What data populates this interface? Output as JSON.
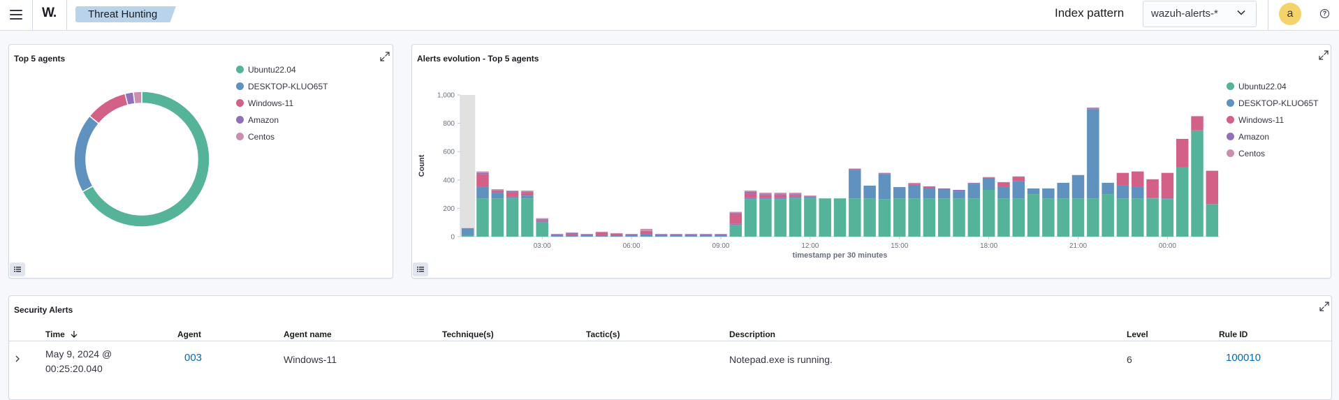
{
  "header": {
    "app_logo": "W.",
    "breadcrumb": "Threat Hunting",
    "index_pattern_label": "Index pattern",
    "index_pattern_value": "wazuh-alerts-*",
    "avatar_letter": "a",
    "help_icon": "?"
  },
  "colors": {
    "ubuntu": "#54b399",
    "desktop": "#6092c0",
    "windows": "#d36086",
    "amazon": "#9170b8",
    "centos": "#ca8eae"
  },
  "top_agents": {
    "title": "Top 5 agents",
    "legend": [
      "Ubuntu22.04",
      "DESKTOP-KLUO65T",
      "Windows-11",
      "Amazon",
      "Centos"
    ]
  },
  "alerts_evolution": {
    "title": "Alerts evolution - Top 5 agents",
    "legend": [
      "Ubuntu22.04",
      "DESKTOP-KLUO65T",
      "Windows-11",
      "Amazon",
      "Centos"
    ]
  },
  "chart_data": [
    {
      "type": "pie",
      "title": "Top 5 agents",
      "donut": true,
      "categories": [
        "Ubuntu22.04",
        "DESKTOP-KLUO65T",
        "Windows-11",
        "Amazon",
        "Centos"
      ],
      "values": [
        67,
        19,
        10,
        2,
        2
      ]
    },
    {
      "type": "bar",
      "stacked": true,
      "title": "Alerts evolution - Top 5 agents",
      "xlabel": "timestamp per 30 minutes",
      "ylabel": "Count",
      "ylim": [
        0,
        1000
      ],
      "yticks": [
        0,
        200,
        400,
        600,
        800,
        1000
      ],
      "ytick_labels": [
        "0",
        "200",
        "400",
        "600",
        "800",
        "1,000"
      ],
      "xtick_labels": [
        {
          "label": "03:00",
          "index": 5.5
        },
        {
          "label": "06:00",
          "index": 11.5
        },
        {
          "label": "09:00",
          "index": 17.5
        },
        {
          "label": "12:00",
          "index": 23.5
        },
        {
          "label": "15:00",
          "index": 29.5
        },
        {
          "label": "18:00",
          "index": 35.5
        },
        {
          "label": "21:00",
          "index": 41.5
        },
        {
          "label": "00:00",
          "index": 47.5
        }
      ],
      "series": [
        {
          "name": "Ubuntu22.04",
          "values": [
            10,
            270,
            270,
            270,
            270,
            100,
            0,
            0,
            0,
            0,
            0,
            0,
            0,
            0,
            0,
            0,
            0,
            0,
            80,
            265,
            265,
            265,
            270,
            270,
            270,
            270,
            270,
            270,
            265,
            270,
            270,
            270,
            270,
            270,
            270,
            330,
            270,
            270,
            300,
            270,
            270,
            270,
            270,
            300,
            270,
            270,
            270,
            265,
            490,
            750,
            230
          ]
        },
        {
          "name": "DESKTOP-KLUO65T",
          "values": [
            45,
            80,
            40,
            10,
            20,
            10,
            5,
            10,
            5,
            10,
            5,
            5,
            15,
            5,
            5,
            5,
            5,
            5,
            10,
            10,
            10,
            10,
            10,
            10,
            0,
            0,
            200,
            90,
            175,
            80,
            95,
            75,
            60,
            50,
            100,
            85,
            80,
            120,
            40,
            70,
            110,
            165,
            630,
            80,
            90,
            80,
            5,
            5,
            0,
            0,
            0
          ]
        },
        {
          "name": "Windows-11",
          "values": [
            0,
            90,
            10,
            35,
            20,
            10,
            5,
            10,
            5,
            15,
            10,
            5,
            20,
            5,
            5,
            5,
            5,
            5,
            70,
            30,
            20,
            20,
            15,
            0,
            0,
            0,
            5,
            0,
            5,
            0,
            5,
            5,
            5,
            5,
            5,
            5,
            30,
            30,
            0,
            0,
            0,
            0,
            5,
            0,
            90,
            110,
            130,
            180,
            200,
            100,
            235
          ]
        },
        {
          "name": "Amazon",
          "values": [
            5,
            10,
            5,
            5,
            5,
            5,
            5,
            5,
            5,
            5,
            5,
            5,
            5,
            5,
            5,
            5,
            5,
            5,
            5,
            10,
            5,
            5,
            5,
            5,
            0,
            0,
            5,
            0,
            5,
            0,
            5,
            5,
            5,
            5,
            5,
            0,
            5,
            5,
            0,
            0,
            0,
            0,
            5,
            0,
            0,
            0,
            0,
            0,
            0,
            0,
            0
          ]
        },
        {
          "name": "Centos",
          "values": [
            0,
            10,
            10,
            5,
            10,
            5,
            5,
            5,
            5,
            5,
            5,
            5,
            15,
            5,
            5,
            5,
            5,
            5,
            10,
            10,
            10,
            10,
            10,
            5,
            0,
            0,
            0,
            0,
            0,
            0,
            5,
            0,
            0,
            0,
            0,
            0,
            0,
            0,
            0,
            0,
            0,
            0,
            0,
            0,
            0,
            0,
            0,
            0,
            0,
            0,
            0
          ]
        }
      ]
    }
  ],
  "security_alerts": {
    "title": "Security Alerts",
    "columns": [
      "Time",
      "Agent",
      "Agent name",
      "Technique(s)",
      "Tactic(s)",
      "Description",
      "Level",
      "Rule ID"
    ],
    "rows": [
      {
        "time_line1": "May 9, 2024 @",
        "time_line2": "00:25:20.040",
        "agent": "003",
        "agent_name": "Windows-11",
        "techniques": "",
        "tactics": "",
        "description": "Notepad.exe is running.",
        "level": "6",
        "rule_id": "100010"
      }
    ]
  }
}
